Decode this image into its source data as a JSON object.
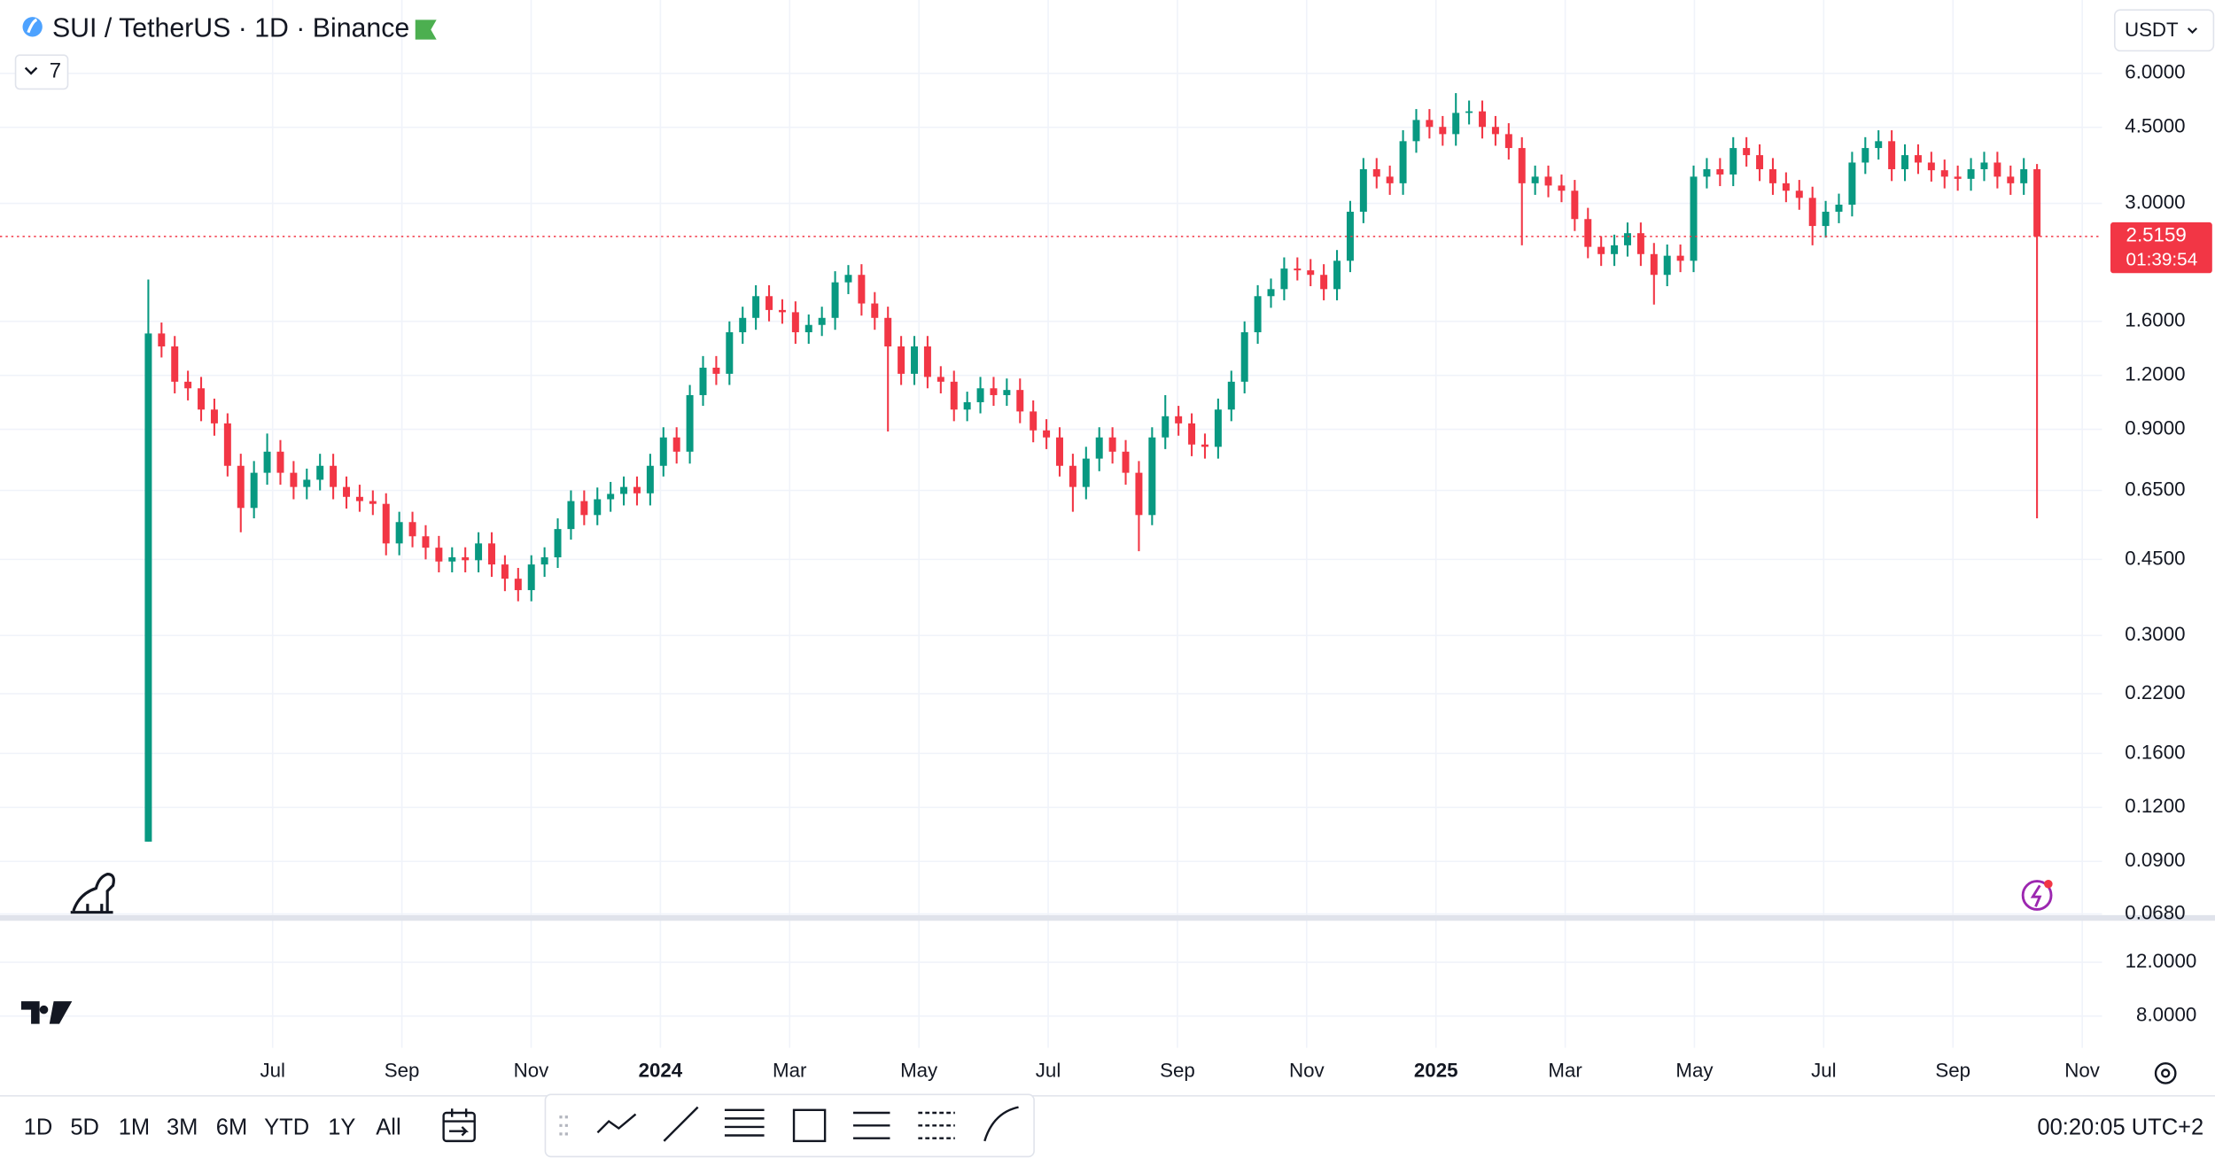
{
  "header": {
    "symbol": "SUI / TetherUS · 1D · Binance",
    "indicator_count": "7",
    "currency": "USDT"
  },
  "chart_data": {
    "type": "candlestick",
    "log_scale": true,
    "grid": true,
    "up_color": "#089981",
    "down_color": "#f23645",
    "ylim": [
      0.0676,
      8.87
    ],
    "yticks": [
      {
        "value": 6,
        "label": "6.0000"
      },
      {
        "value": 4.5,
        "label": "4.5000"
      },
      {
        "value": 3,
        "label": "3.0000"
      },
      {
        "value": 1.6,
        "label": "1.6000"
      },
      {
        "value": 1.2,
        "label": "1.2000"
      },
      {
        "value": 0.9,
        "label": "0.9000"
      },
      {
        "value": 0.65,
        "label": "0.6500"
      },
      {
        "value": 0.45,
        "label": "0.4500"
      },
      {
        "value": 0.3,
        "label": "0.3000"
      },
      {
        "value": 0.22,
        "label": "0.2200"
      },
      {
        "value": 0.16,
        "label": "0.1600"
      },
      {
        "value": 0.12,
        "label": "0.1200"
      },
      {
        "value": 0.09,
        "label": "0.0900"
      },
      {
        "value": 0.068,
        "label": "0.0680"
      }
    ],
    "xtick_labels": [
      "Jul",
      "Sep",
      "Nov",
      "2024",
      "Mar",
      "May",
      "Jul",
      "Sep",
      "Nov",
      "2025",
      "Mar",
      "May",
      "Jul",
      "Sep",
      "Nov"
    ],
    "open": [
      0.1,
      1.5,
      1.4,
      1.16,
      1.12,
      1.0,
      0.929,
      0.741,
      0.592,
      0.714,
      0.799,
      0.714,
      0.662,
      0.688,
      0.741,
      0.662,
      0.628,
      0.614,
      0.605,
      0.49,
      0.549,
      0.509,
      0.479,
      0.445,
      0.455,
      0.448,
      0.49,
      0.438,
      0.406,
      0.382,
      0.438,
      0.455,
      0.529,
      0.614,
      0.57,
      0.62,
      0.638,
      0.662,
      0.64,
      0.741,
      0.862,
      0.799,
      1.08,
      1.25,
      1.21,
      1.51,
      1.63,
      1.83,
      1.7,
      1.68,
      1.51,
      1.57,
      1.63,
      1.97,
      2.05,
      1.76,
      1.63,
      1.4,
      1.21,
      1.4,
      1.19,
      1.16,
      1.0,
      1.04,
      1.12,
      1.08,
      1.11,
      0.99,
      0.895,
      0.862,
      0.741,
      0.662,
      0.77,
      0.862,
      0.799,
      0.714,
      0.57,
      0.862,
      0.965,
      0.929,
      0.83,
      0.82,
      1.0,
      1.16,
      1.51,
      1.83,
      1.9,
      2.12,
      2.1,
      2.05,
      1.9,
      2.21,
      2.87,
      3.6,
      3.46,
      3.34,
      4.18,
      4.68,
      4.51,
      4.34,
      4.86,
      4.9,
      4.51,
      4.34,
      4.03,
      3.34,
      3.46,
      3.3,
      3.21,
      2.76,
      2.38,
      2.29,
      2.4,
      2.56,
      2.29,
      2.05,
      2.27,
      2.21,
      3.46,
      3.6,
      3.5,
      4.03,
      3.88,
      3.6,
      3.34,
      3.21,
      3.09,
      2.66,
      2.87,
      2.98,
      3.73,
      4.03,
      4.18,
      3.6,
      3.88,
      3.73,
      3.58,
      3.46,
      3.42,
      3.6,
      3.73,
      3.46,
      3.34,
      3.6
    ],
    "high": [
      2.0,
      1.59,
      1.48,
      1.23,
      1.19,
      1.06,
      0.98,
      0.79,
      0.76,
      0.88,
      0.85,
      0.76,
      0.73,
      0.79,
      0.79,
      0.7,
      0.67,
      0.65,
      0.64,
      0.58,
      0.58,
      0.54,
      0.51,
      0.48,
      0.48,
      0.52,
      0.52,
      0.46,
      0.43,
      0.46,
      0.48,
      0.56,
      0.65,
      0.65,
      0.66,
      0.68,
      0.7,
      0.7,
      0.79,
      0.91,
      0.91,
      1.14,
      1.33,
      1.33,
      1.6,
      1.73,
      1.94,
      1.94,
      1.8,
      1.78,
      1.66,
      1.73,
      2.09,
      2.16,
      2.17,
      1.87,
      1.73,
      1.48,
      1.48,
      1.48,
      1.26,
      1.23,
      1.1,
      1.19,
      1.19,
      1.18,
      1.18,
      1.05,
      0.95,
      0.91,
      0.79,
      0.82,
      0.91,
      0.91,
      0.85,
      0.76,
      0.91,
      1.08,
      1.02,
      0.98,
      0.88,
      1.06,
      1.23,
      1.6,
      1.94,
      2.01,
      2.25,
      2.25,
      2.23,
      2.17,
      2.34,
      3.04,
      3.82,
      3.82,
      3.67,
      4.43,
      4.96,
      4.96,
      4.78,
      5.4,
      5.19,
      5.19,
      4.78,
      4.6,
      4.27,
      3.67,
      3.67,
      3.5,
      3.4,
      2.93,
      2.52,
      2.54,
      2.71,
      2.71,
      2.43,
      2.41,
      2.41,
      3.67,
      3.82,
      3.82,
      4.27,
      4.27,
      4.11,
      3.82,
      3.54,
      3.4,
      3.28,
      3.04,
      3.16,
      3.95,
      4.27,
      4.43,
      4.43,
      4.11,
      4.11,
      3.95,
      3.79,
      3.67,
      3.82,
      3.95,
      3.95,
      3.67,
      3.82,
      3.7
    ],
    "low": [
      0.1,
      1.32,
      1.09,
      1.05,
      0.94,
      0.87,
      0.7,
      0.52,
      0.56,
      0.67,
      0.67,
      0.62,
      0.62,
      0.65,
      0.62,
      0.59,
      0.58,
      0.57,
      0.46,
      0.46,
      0.48,
      0.45,
      0.42,
      0.42,
      0.42,
      0.42,
      0.41,
      0.38,
      0.36,
      0.36,
      0.41,
      0.43,
      0.5,
      0.54,
      0.54,
      0.58,
      0.6,
      0.6,
      0.6,
      0.7,
      0.75,
      0.75,
      1.02,
      1.14,
      1.14,
      1.42,
      1.53,
      1.6,
      1.58,
      1.42,
      1.42,
      1.48,
      1.53,
      1.85,
      1.65,
      1.53,
      0.89,
      1.14,
      1.14,
      1.12,
      1.09,
      0.94,
      0.94,
      0.98,
      1.02,
      1.02,
      0.93,
      0.84,
      0.81,
      0.7,
      0.58,
      0.62,
      0.72,
      0.75,
      0.67,
      0.47,
      0.54,
      0.81,
      0.87,
      0.78,
      0.77,
      0.77,
      0.94,
      1.09,
      1.42,
      1.72,
      1.79,
      1.99,
      1.93,
      1.79,
      1.79,
      2.08,
      2.7,
      3.25,
      3.14,
      3.14,
      3.93,
      4.24,
      4.08,
      4.08,
      4.57,
      4.24,
      4.08,
      3.79,
      2.4,
      3.14,
      3.1,
      3.02,
      2.59,
      2.24,
      2.15,
      2.15,
      2.26,
      2.15,
      1.75,
      1.93,
      2.08,
      2.08,
      3.25,
      3.29,
      3.29,
      3.65,
      3.38,
      3.14,
      3.02,
      2.9,
      2.4,
      2.5,
      2.7,
      2.8,
      3.51,
      3.79,
      3.38,
      3.38,
      3.51,
      3.37,
      3.25,
      3.21,
      3.21,
      3.38,
      3.25,
      3.14,
      3.14,
      0.56
    ],
    "close": [
      1.5,
      1.4,
      1.16,
      1.12,
      1.0,
      0.929,
      0.741,
      0.592,
      0.714,
      0.799,
      0.714,
      0.662,
      0.688,
      0.741,
      0.662,
      0.628,
      0.614,
      0.605,
      0.49,
      0.549,
      0.509,
      0.479,
      0.445,
      0.455,
      0.448,
      0.49,
      0.438,
      0.406,
      0.382,
      0.438,
      0.455,
      0.529,
      0.614,
      0.57,
      0.62,
      0.638,
      0.662,
      0.64,
      0.741,
      0.862,
      0.799,
      1.08,
      1.25,
      1.21,
      1.51,
      1.63,
      1.83,
      1.7,
      1.68,
      1.51,
      1.57,
      1.63,
      1.97,
      2.05,
      1.76,
      1.63,
      1.4,
      1.21,
      1.4,
      1.19,
      1.16,
      1.0,
      1.04,
      1.12,
      1.08,
      1.11,
      0.99,
      0.895,
      0.862,
      0.741,
      0.662,
      0.77,
      0.862,
      0.799,
      0.714,
      0.57,
      0.862,
      0.965,
      0.929,
      0.83,
      0.82,
      1.0,
      1.16,
      1.51,
      1.83,
      1.9,
      2.12,
      2.1,
      2.05,
      1.9,
      2.21,
      2.87,
      3.6,
      3.46,
      3.34,
      4.18,
      4.68,
      4.51,
      4.34,
      4.86,
      4.9,
      4.51,
      4.34,
      4.03,
      3.34,
      3.46,
      3.3,
      3.21,
      2.76,
      2.38,
      2.29,
      2.4,
      2.56,
      2.29,
      2.05,
      2.27,
      2.21,
      3.46,
      3.6,
      3.5,
      4.03,
      3.88,
      3.6,
      3.34,
      3.21,
      3.09,
      2.66,
      2.87,
      2.98,
      3.73,
      4.03,
      4.18,
      3.6,
      3.88,
      3.73,
      3.58,
      3.46,
      3.42,
      3.6,
      3.73,
      3.46,
      3.34,
      3.6,
      2.5159
    ],
    "last_price": 2.5159,
    "countdown": "01:39:54"
  },
  "lower_pane": {
    "ylim": [
      5.64,
      15.08
    ],
    "yticks": [
      {
        "value": 12,
        "label": "12.0000"
      },
      {
        "value": 8,
        "label": "8.0000"
      }
    ]
  },
  "footer": {
    "ranges": [
      "1D",
      "5D",
      "1M",
      "3M",
      "6M",
      "YTD",
      "1Y",
      "All"
    ],
    "clock": "00:20:05 UTC+2"
  }
}
